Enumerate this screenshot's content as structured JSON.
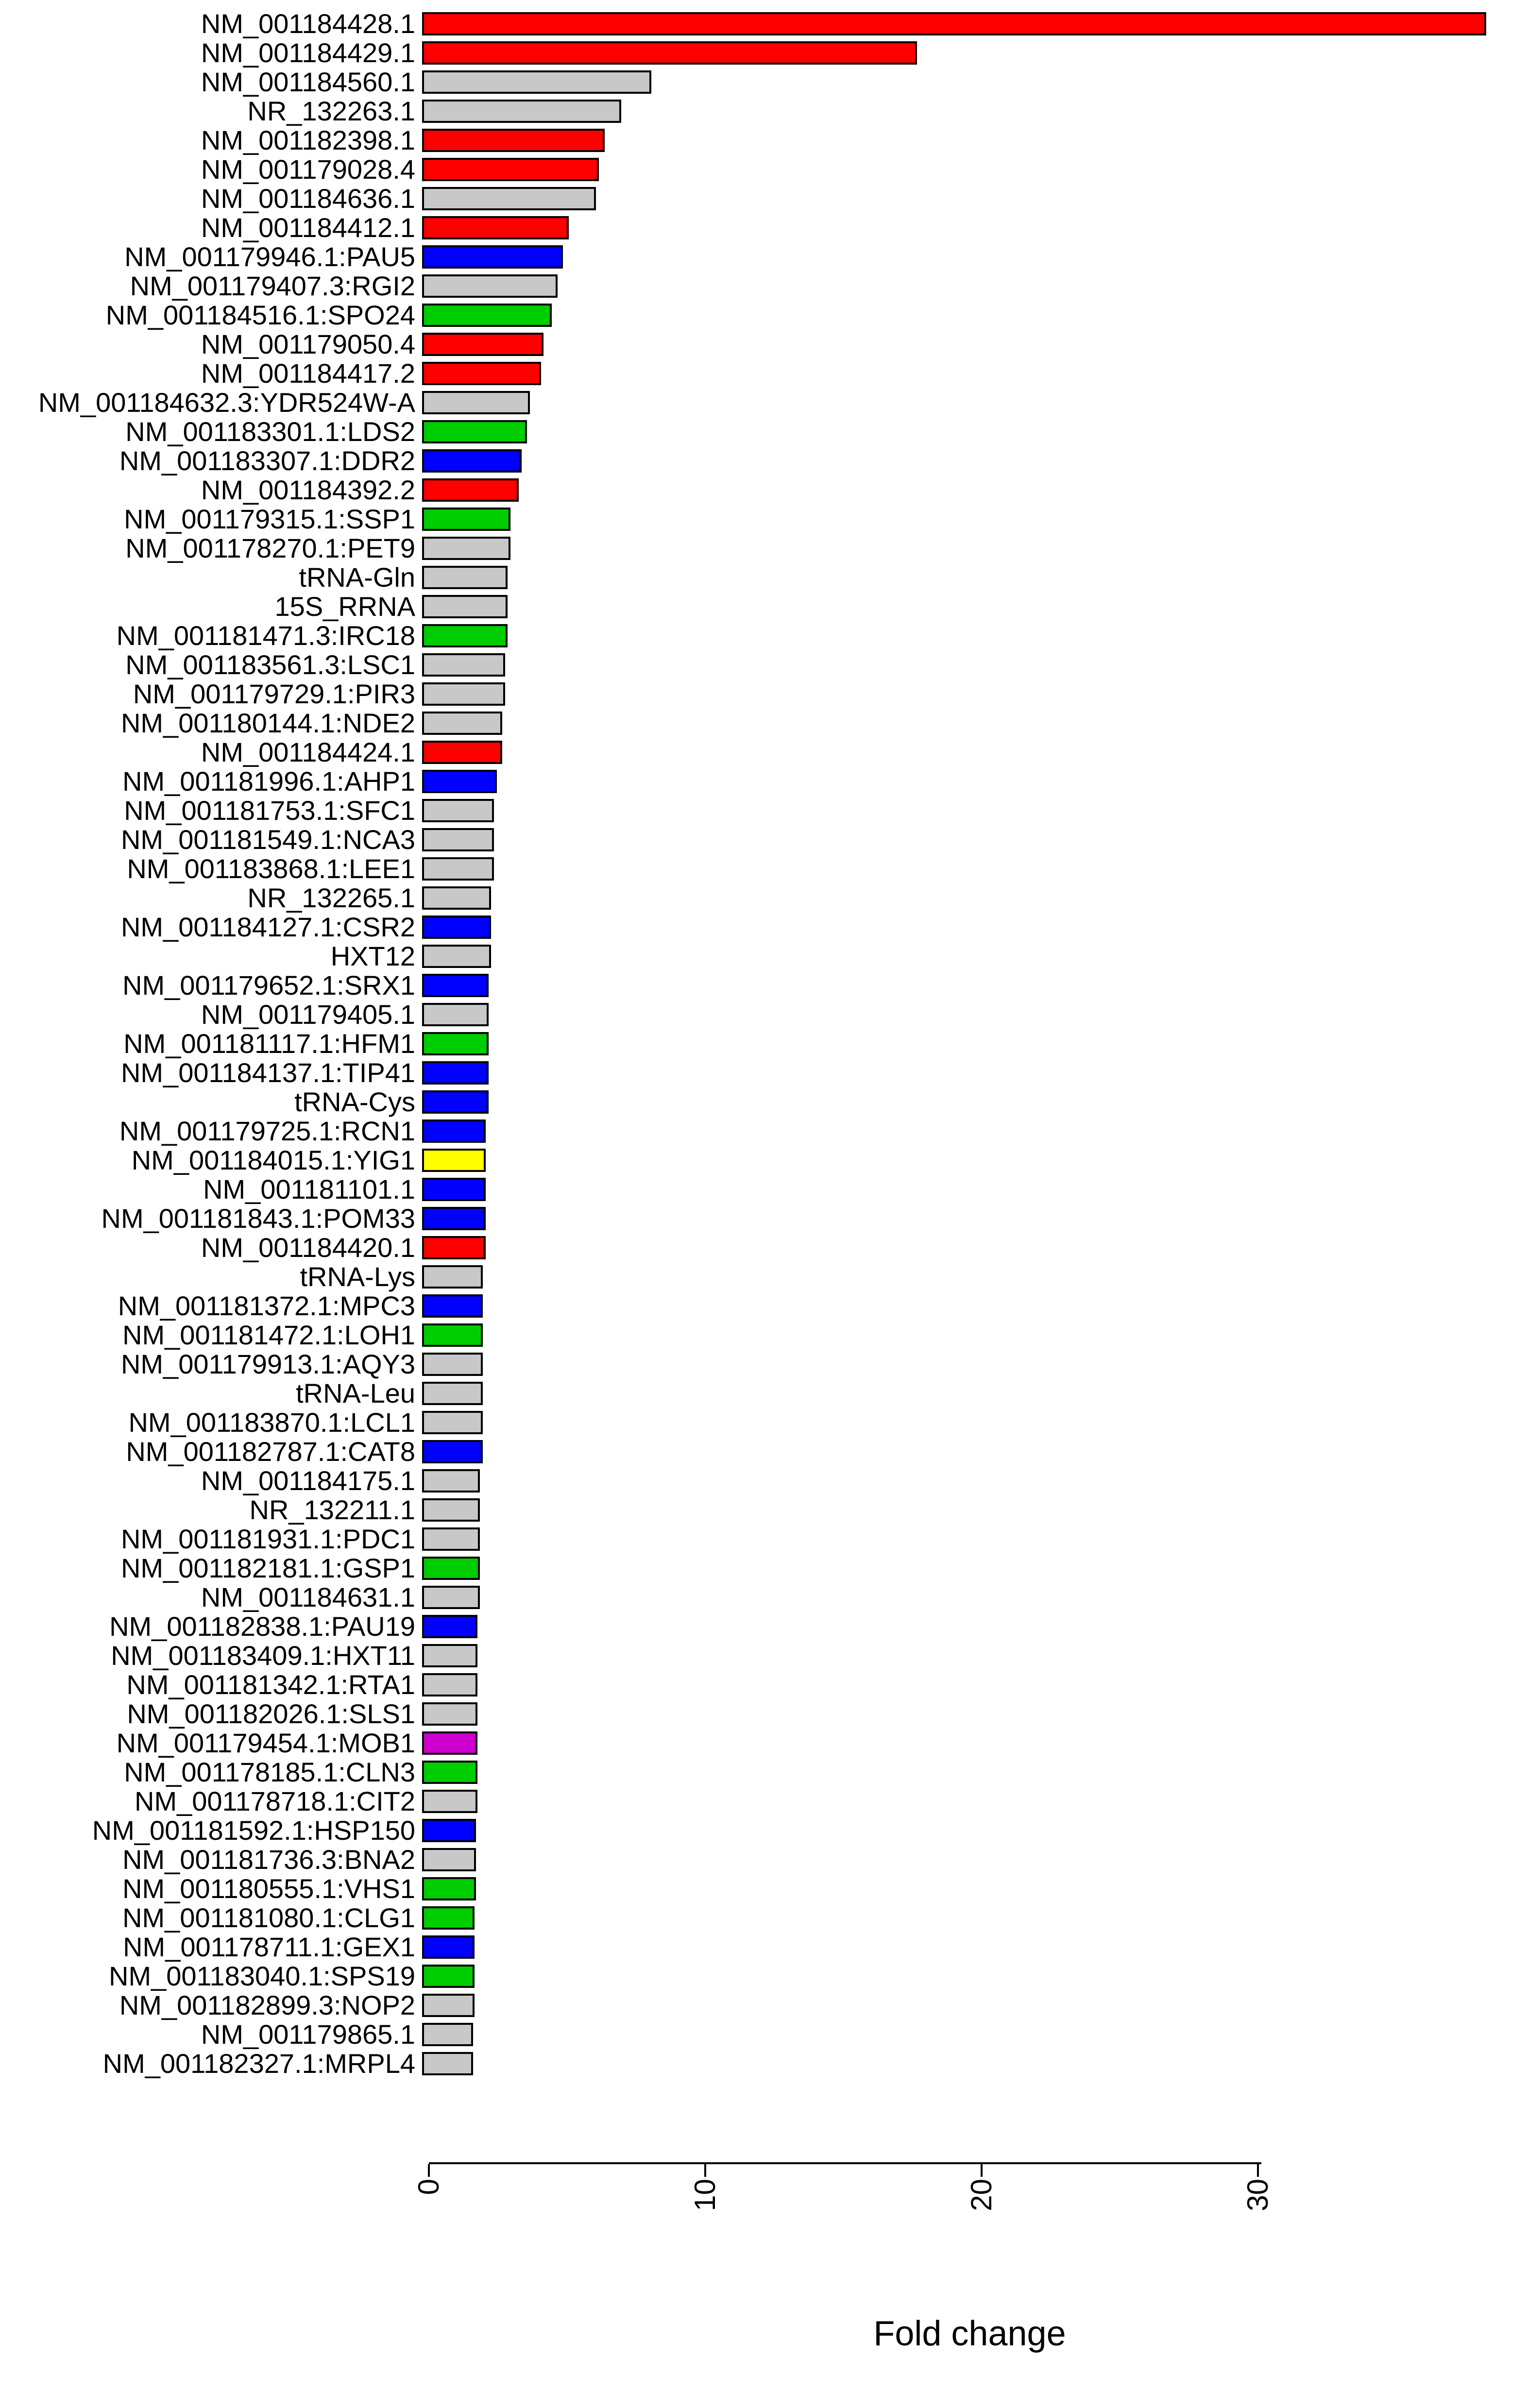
{
  "chart_data": {
    "type": "bar",
    "orientation": "horizontal",
    "title": "",
    "xlabel": "Fold change",
    "ylabel": "",
    "xlim": [
      0,
      39
    ],
    "x_ticks": [
      0,
      10,
      20,
      30
    ],
    "x_tick_labels": [
      "0",
      "10",
      "20",
      "30"
    ],
    "grid": "off",
    "legend": "none",
    "palette": {
      "red": "#FF0000",
      "gray": "#C8C8C8",
      "blue": "#0000FF",
      "green": "#00CD00",
      "yellow": "#FFFF00",
      "magenta": "#CD00CD"
    },
    "categories": [
      "NM_001184428.1",
      "NM_001184429.1",
      "NM_001184560.1",
      "NR_132263.1",
      "NM_001182398.1",
      "NM_001179028.4",
      "NM_001184636.1",
      "NM_001184412.1",
      "NM_001179946.1:PAU5",
      "NM_001179407.3:RGI2",
      "NM_001184516.1:SPO24",
      "NM_001179050.4",
      "NM_001184417.2",
      "NM_001184632.3:YDR524W-A",
      "NM_001183301.1:LDS2",
      "NM_001183307.1:DDR2",
      "NM_001184392.2",
      "NM_001179315.1:SSP1",
      "NM_001178270.1:PET9",
      "tRNA-Gln",
      "15S_RRNA",
      "NM_001181471.3:IRC18",
      "NM_001183561.3:LSC1",
      "NM_001179729.1:PIR3",
      "NM_001180144.1:NDE2",
      "NM_001184424.1",
      "NM_001181996.1:AHP1",
      "NM_001181753.1:SFC1",
      "NM_001181549.1:NCA3",
      "NM_001183868.1:LEE1",
      "NR_132265.1",
      "NM_001184127.1:CSR2",
      "HXT12",
      "NM_001179652.1:SRX1",
      "NM_001179405.1",
      "NM_001181117.1:HFM1",
      "NM_001184137.1:TIP41",
      "tRNA-Cys",
      "NM_001179725.1:RCN1",
      "NM_001184015.1:YIG1",
      "NM_001181101.1",
      "NM_001181843.1:POM33",
      "NM_001184420.1",
      "tRNA-Lys",
      "NM_001181372.1:MPC3",
      "NM_001181472.1:LOH1",
      "NM_001179913.1:AQY3",
      "tRNA-Leu",
      "NM_001183870.1:LCL1",
      "NM_001182787.1:CAT8",
      "NM_001184175.1",
      "NR_132211.1",
      "NM_001181931.1:PDC1",
      "NM_001182181.1:GSP1",
      "NM_001184631.1",
      "NM_001182838.1:PAU19",
      "NM_001183409.1:HXT11",
      "NM_001181342.1:RTA1",
      "NM_001182026.1:SLS1",
      "NM_001179454.1:MOB1",
      "NM_001178185.1:CLN3",
      "NM_001178718.1:CIT2",
      "NM_001181592.1:HSP150",
      "NM_001181736.3:BNA2",
      "NM_001180555.1:VHS1",
      "NM_001181080.1:CLG1",
      "NM_001178711.1:GEX1",
      "NM_001183040.1:SPS19",
      "NM_001182899.3:NOP2",
      "NM_001179865.1",
      "NM_001182327.1:MRPL4"
    ],
    "values": [
      38.5,
      17.9,
      8.3,
      7.2,
      6.6,
      6.4,
      6.3,
      5.3,
      5.1,
      4.9,
      4.7,
      4.4,
      4.3,
      3.9,
      3.8,
      3.6,
      3.5,
      3.2,
      3.2,
      3.1,
      3.1,
      3.1,
      3.0,
      3.0,
      2.9,
      2.9,
      2.7,
      2.6,
      2.6,
      2.6,
      2.5,
      2.5,
      2.5,
      2.4,
      2.4,
      2.4,
      2.4,
      2.4,
      2.3,
      2.3,
      2.3,
      2.3,
      2.3,
      2.2,
      2.2,
      2.2,
      2.2,
      2.2,
      2.2,
      2.2,
      2.1,
      2.1,
      2.1,
      2.1,
      2.1,
      2.0,
      2.0,
      2.0,
      2.0,
      2.0,
      2.0,
      2.0,
      1.95,
      1.95,
      1.95,
      1.9,
      1.9,
      1.9,
      1.9,
      1.85,
      1.85
    ],
    "bar_colors": [
      "red",
      "red",
      "gray",
      "gray",
      "red",
      "red",
      "gray",
      "red",
      "blue",
      "gray",
      "green",
      "red",
      "red",
      "gray",
      "green",
      "blue",
      "red",
      "green",
      "gray",
      "gray",
      "gray",
      "green",
      "gray",
      "gray",
      "gray",
      "red",
      "blue",
      "gray",
      "gray",
      "gray",
      "gray",
      "blue",
      "gray",
      "blue",
      "gray",
      "green",
      "blue",
      "blue",
      "blue",
      "yellow",
      "blue",
      "blue",
      "red",
      "gray",
      "blue",
      "green",
      "gray",
      "gray",
      "gray",
      "blue",
      "gray",
      "gray",
      "gray",
      "green",
      "gray",
      "blue",
      "gray",
      "gray",
      "gray",
      "magenta",
      "green",
      "gray",
      "blue",
      "gray",
      "green",
      "green",
      "blue",
      "green",
      "gray",
      "gray",
      "gray"
    ]
  }
}
